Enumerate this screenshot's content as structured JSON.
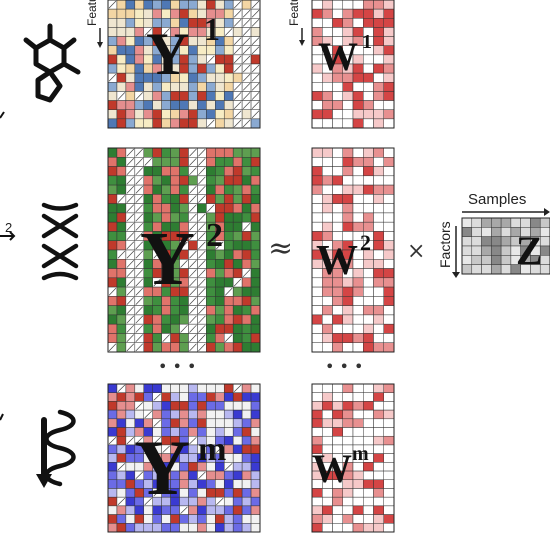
{
  "matrices": {
    "y1": {
      "letter": "Y",
      "sup": "1"
    },
    "y2": {
      "letter": "Y",
      "sup": "2"
    },
    "ym": {
      "letter": "Y",
      "sup": "m"
    },
    "w1": {
      "letter": "W",
      "sup": "1"
    },
    "w2": {
      "letter": "W",
      "sup": "2"
    },
    "wm": {
      "letter": "W",
      "sup": "m"
    },
    "z": {
      "letter": "Z",
      "sup": ""
    }
  },
  "labels": {
    "features_y": "Featu",
    "features_w": "Featu",
    "samples": "Samples",
    "factors": "Factors",
    "view_index": "2"
  },
  "operators": {
    "approx": "≈",
    "times": "×",
    "ellipsis": "• • •"
  },
  "icons": [
    "molecule-icon",
    "chromosome-icon",
    "protein-helix-icon"
  ],
  "colors": {
    "y1_palette": [
      "#c0392b",
      "#e58e8e",
      "#f3d6a4",
      "#f7ecc4",
      "#8aa9d1",
      "#4f78b5",
      "#efe6d0"
    ],
    "y2_palette": [
      "#2e7d32",
      "#3f8f3f",
      "#c0392b",
      "#e0736a",
      "#5e9e50"
    ],
    "ym_palette": [
      "#3a3ad1",
      "#6b6be6",
      "#c0392b",
      "#e58e8e",
      "#b8b8f0",
      "#f2f2f2"
    ],
    "w_palette": [
      "#ffffff",
      "#ffffff",
      "#ffffff",
      "#f6c9c9",
      "#e89090",
      "#d44545"
    ],
    "z_palette": [
      "#e8e8e8",
      "#c8c8c8",
      "#a8a8a8",
      "#888888",
      "#dcdcdc"
    ],
    "grid_line": "#333333"
  }
}
